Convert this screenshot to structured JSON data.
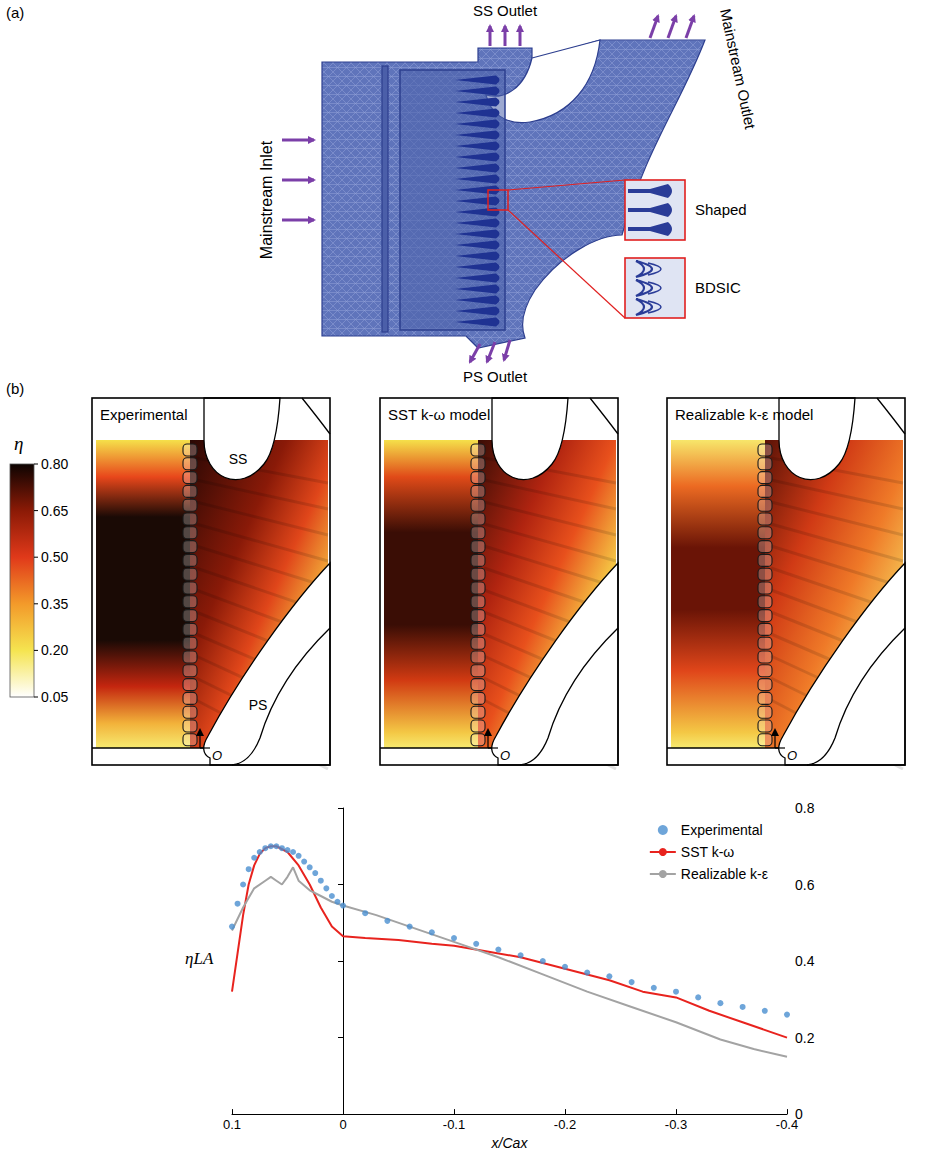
{
  "panel_a": {
    "label": "(a)",
    "mainstream_inlet": "Mainstream Inlet",
    "ss_outlet": "SS Outlet",
    "mainstream_outlet": "Mainstream Outlet",
    "ps_outlet": "PS Outlet",
    "insets": [
      "Shaped",
      "BDSIC"
    ]
  },
  "panel_b": {
    "label": "(b)",
    "colorbar": {
      "title": "η",
      "range": [
        0.05,
        0.8
      ],
      "ticks": [
        {
          "value": 0.8,
          "label": "0.80"
        },
        0.65,
        {
          "value": 0.5,
          "label": "0.50"
        },
        0.35,
        {
          "value": 0.2,
          "label": "0.20"
        },
        0.05
      ]
    },
    "maps": [
      {
        "title": "Experimental",
        "labels": {
          "ss": "SS",
          "ps": "PS",
          "origin": "O"
        }
      },
      {
        "title": "SST k-ω model",
        "labels": {
          "origin": "O"
        }
      },
      {
        "title": "Realizable k-ε model",
        "labels": {
          "origin": "O"
        }
      }
    ]
  },
  "chart_data": {
    "type": "line",
    "xlabel": "x/Cax",
    "ylabel": "ηLA",
    "xlim": [
      0.1,
      -0.4
    ],
    "xticks": [
      0.1,
      0,
      -0.1,
      -0.2,
      -0.3,
      -0.4
    ],
    "ylim": [
      0,
      0.8
    ],
    "yticks": [
      0,
      0.2,
      0.4,
      0.6,
      0.8
    ],
    "legend": "upper right",
    "series": [
      {
        "name": "Experimental",
        "type": "scatter",
        "marker": "circle",
        "color": "#4a8fcf",
        "x": [
          0.1,
          0.095,
          0.09,
          0.085,
          0.08,
          0.075,
          0.07,
          0.065,
          0.06,
          0.055,
          0.05,
          0.045,
          0.04,
          0.035,
          0.03,
          0.025,
          0.02,
          0.015,
          0.01,
          0.005,
          0,
          -0.02,
          -0.04,
          -0.06,
          -0.08,
          -0.1,
          -0.12,
          -0.14,
          -0.16,
          -0.18,
          -0.2,
          -0.22,
          -0.24,
          -0.26,
          -0.28,
          -0.3,
          -0.32,
          -0.34,
          -0.36,
          -0.38,
          -0.4
        ],
        "values": [
          0.49,
          0.55,
          0.6,
          0.64,
          0.67,
          0.685,
          0.695,
          0.7,
          0.7,
          0.695,
          0.69,
          0.685,
          0.675,
          0.66,
          0.645,
          0.63,
          0.61,
          0.59,
          0.57,
          0.555,
          0.545,
          0.525,
          0.505,
          0.49,
          0.475,
          0.46,
          0.445,
          0.43,
          0.415,
          0.4,
          0.385,
          0.37,
          0.36,
          0.345,
          0.33,
          0.32,
          0.305,
          0.29,
          0.28,
          0.27,
          0.26
        ]
      },
      {
        "name": "SST k-ω",
        "type": "line",
        "line_style": "solid",
        "color": "#e8231e",
        "x": [
          0.1,
          0.095,
          0.09,
          0.085,
          0.08,
          0.075,
          0.07,
          0.065,
          0.06,
          0.05,
          0.04,
          0.03,
          0.02,
          0.01,
          0,
          -0.02,
          -0.05,
          -0.08,
          -0.1,
          -0.13,
          -0.16,
          -0.2,
          -0.24,
          -0.27,
          -0.3,
          -0.33,
          -0.36,
          -0.4
        ],
        "values": [
          0.32,
          0.42,
          0.52,
          0.6,
          0.65,
          0.68,
          0.695,
          0.7,
          0.7,
          0.685,
          0.65,
          0.6,
          0.54,
          0.49,
          0.465,
          0.46,
          0.455,
          0.445,
          0.44,
          0.425,
          0.41,
          0.38,
          0.35,
          0.32,
          0.305,
          0.27,
          0.24,
          0.2
        ]
      },
      {
        "name": "Realizable k-ε",
        "type": "line",
        "line_style": "solid",
        "color": "#a3a3a3",
        "x": [
          0.1,
          0.09,
          0.08,
          0.07,
          0.065,
          0.06,
          0.055,
          0.05,
          0.045,
          0.04,
          0.03,
          0.02,
          0.01,
          0,
          -0.03,
          -0.06,
          -0.1,
          -0.14,
          -0.18,
          -0.22,
          -0.26,
          -0.3,
          -0.34,
          -0.37,
          -0.4
        ],
        "values": [
          0.48,
          0.54,
          0.59,
          0.61,
          0.62,
          0.61,
          0.6,
          0.62,
          0.645,
          0.61,
          0.585,
          0.57,
          0.555,
          0.545,
          0.52,
          0.49,
          0.45,
          0.41,
          0.365,
          0.32,
          0.28,
          0.24,
          0.195,
          0.17,
          0.15
        ]
      }
    ]
  }
}
